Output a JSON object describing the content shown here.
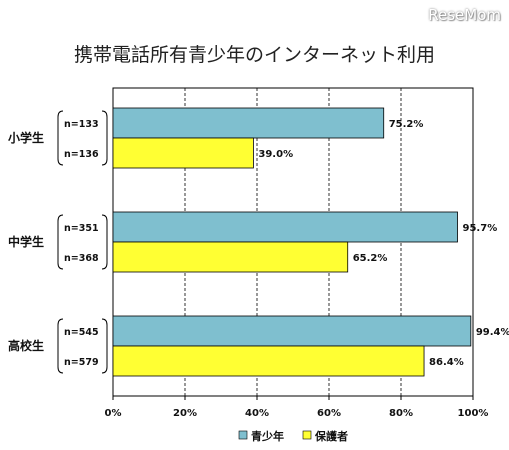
{
  "watermark": "ReseMom",
  "chart_data": {
    "type": "bar",
    "orientation": "horizontal",
    "title": "携帯電話所有青少年のインターネット利用",
    "categories": [
      "小学生",
      "中学生",
      "高校生"
    ],
    "series": [
      {
        "name": "青少年",
        "color": "#7fbfcf",
        "values": [
          75.2,
          95.7,
          99.4
        ],
        "value_labels": [
          "75.2%",
          "95.7%",
          "99.4%"
        ],
        "n_labels": [
          "n=133",
          "n=351",
          "n=545"
        ]
      },
      {
        "name": "保護者",
        "color": "#ffff33",
        "values": [
          39.0,
          65.2,
          86.4
        ],
        "value_labels": [
          "39.0%",
          "65.2%",
          "86.4%"
        ],
        "n_labels": [
          "n=136",
          "n=368",
          "n=579"
        ]
      }
    ],
    "xlim": [
      0,
      100
    ],
    "x_ticks": [
      "0%",
      "20%",
      "40%",
      "60%",
      "80%",
      "100%"
    ],
    "grid": "vertical dashed",
    "legend_position": "bottom"
  }
}
